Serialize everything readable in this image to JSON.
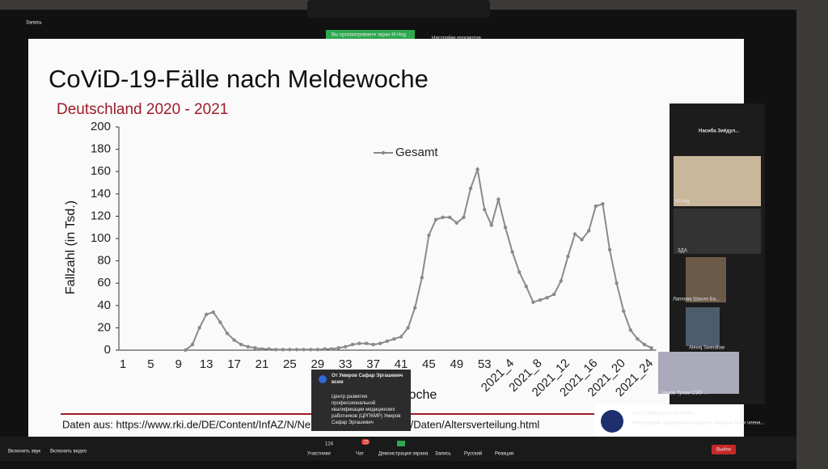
{
  "zoom_top": {
    "recording": "Запись",
    "viewing": "Вы просматриваете экран M Hug",
    "view_settings": "Настройки просмотра"
  },
  "slide": {
    "title": "CoViD-19-Fälle nach Meldewoche",
    "subtitle": "Deutschland 2020 - 2021",
    "source": "Daten aus: https://www.rki.de/DE/Content/InfAZ/N/Neuartiges_Coronavirus/Daten/Altersverteilung.html",
    "chart": {
      "type": "line",
      "y_label": "Fallzahl (in Tsd.)",
      "x_label": "Kalenderwoche",
      "categories": [
        "1",
        null,
        null,
        null,
        "5",
        null,
        null,
        null,
        "9",
        null,
        null,
        null,
        "13",
        null,
        null,
        null,
        "17",
        null,
        null,
        null,
        "21",
        null,
        null,
        null,
        "25",
        null,
        null,
        null,
        "29",
        null,
        null,
        null,
        "33",
        null,
        null,
        null,
        "37",
        null,
        null,
        null,
        "41",
        null,
        null,
        null,
        "45",
        null,
        null,
        null,
        "49",
        null,
        null,
        null,
        "53",
        null,
        null,
        null,
        "2021_4",
        null,
        null,
        null,
        "2021_8",
        null,
        null,
        null,
        "2021_12",
        null,
        null,
        null,
        "2021_16",
        null,
        null,
        null,
        "2021_20",
        null,
        null,
        null,
        "2021_24"
      ],
      "series": [
        {
          "name": "Gesamt",
          "color": "#8a8a8a",
          "values": [
            null,
            null,
            null,
            null,
            null,
            null,
            null,
            null,
            null,
            0,
            5,
            20,
            32,
            34,
            25,
            15,
            9,
            5,
            3,
            2,
            1,
            1,
            0.5,
            0.5,
            0.5,
            0.5,
            0.5,
            0.5,
            0.5,
            1,
            1,
            2,
            3,
            5,
            6,
            6,
            5,
            6,
            8,
            10,
            12,
            20,
            38,
            65,
            103,
            117,
            119,
            119,
            114,
            119,
            145,
            162,
            126,
            112,
            135,
            110,
            88,
            70,
            57,
            43,
            45,
            47,
            50,
            62,
            84,
            104,
            99,
            107,
            129,
            131,
            90,
            60,
            35,
            18,
            10,
            5,
            2
          ]
        }
      ],
      "ylim": [
        0,
        200
      ],
      "yticks": [
        0,
        20,
        40,
        60,
        80,
        100,
        120,
        140,
        160,
        180,
        200
      ]
    }
  },
  "participants": {
    "header": "Насиба Зиёдул...",
    "names": [
      "M Hug",
      "ЗДА",
      "Лаппова Шахло Ба...",
      "Alexej Swerdlow",
      "Чанов Тухам СЭО ..."
    ]
  },
  "chat_popup": {
    "from": "От Умиров Сафар Эргашевич всем",
    "message": "Центр развития профессиональной квалификации медицинских работников (ЦРПКМР) Умиров Сафар Эргашевич"
  },
  "notification": {
    "title": "UzA | Официальный канал...",
    "text": "Фотография, Задержаны граждане, которые были члена..."
  },
  "toolbar": {
    "audio": "Включить звук",
    "video": "Включить видео",
    "participants": "Участники",
    "participants_count": "124",
    "chat": "Чат",
    "chat_count": "25",
    "share": "Демонстрация экрана",
    "record": "Запись",
    "language": "Русский",
    "reactions": "Реакции",
    "leave": "Выйти"
  }
}
